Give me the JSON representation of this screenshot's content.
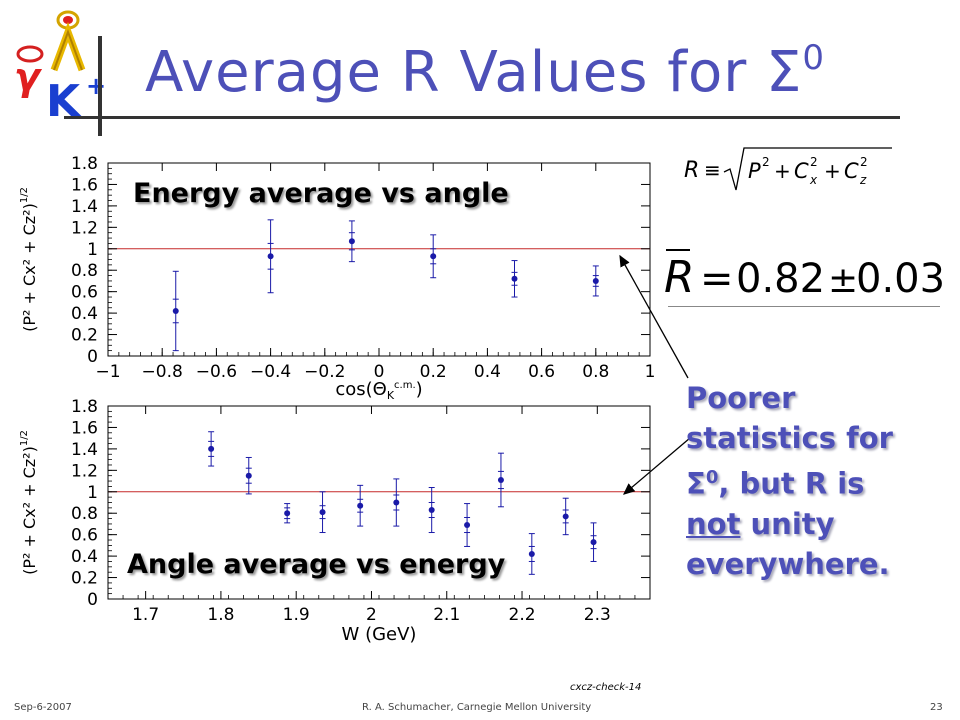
{
  "slide": {
    "title": "Average R  Values for Σ",
    "title_sup": "0",
    "logo_letters": "γ Λ K+",
    "formula_def": "R ≡ √(P² + Cx² + Cz²)",
    "formula_mean": "R̄ = 0.82 ± 0.03",
    "note": {
      "line1": "Poorer",
      "line2": "statistics for",
      "sigma": "Σ",
      "sigma_sup": "0",
      "line3_rest": ", but R is",
      "not": "not",
      "line4_rest": " unity",
      "line5": "everywhere."
    },
    "footer": {
      "date": "Sep-6-2007",
      "author": "R. A. Schumacher, Carnegie Mellon University",
      "page": "23"
    },
    "check_label": "cxcz-check-14"
  },
  "chart_data": [
    {
      "type": "scatter",
      "overlay_label": "Energy average vs angle",
      "xlabel": "cos(Θ",
      "xlabel_sub": "K",
      "xlabel_sup": "c.m.",
      "xlabel_close": ")",
      "ylabel": "(P² + Cx² + Cz²)",
      "ylabel_sup": "1/2",
      "xlim": [
        -1,
        1
      ],
      "ylim": [
        0,
        1.8
      ],
      "xticks": [
        -1,
        -0.8,
        -0.6,
        -0.4,
        -0.2,
        0,
        0.2,
        0.4,
        0.6,
        0.8,
        1
      ],
      "xtick_labels": [
        "−1",
        "−0.8",
        "−0.6",
        "−0.4",
        "−0.2",
        "0",
        "0.2",
        "0.4",
        "0.6",
        "0.8",
        "1"
      ],
      "yticks": [
        0,
        0.2,
        0.4,
        0.6,
        0.8,
        1,
        1.2,
        1.4,
        1.6,
        1.8
      ],
      "ytick_labels": [
        "0",
        "0.2",
        "0.4",
        "0.6",
        "0.8",
        "1",
        "1.2",
        "1.4",
        "1.6",
        "1.8"
      ],
      "reference_line": 1,
      "points": [
        {
          "x": -0.75,
          "y": 0.42,
          "err": 0.37,
          "err_inner": 0.11
        },
        {
          "x": -0.4,
          "y": 0.93,
          "err": 0.34,
          "err_inner": 0.12
        },
        {
          "x": -0.1,
          "y": 1.07,
          "err": 0.19,
          "err_inner": 0.08
        },
        {
          "x": 0.2,
          "y": 0.93,
          "err": 0.2,
          "err_inner": 0.07
        },
        {
          "x": 0.5,
          "y": 0.72,
          "err": 0.17,
          "err_inner": 0.06
        },
        {
          "x": 0.8,
          "y": 0.7,
          "err": 0.14,
          "err_inner": 0.05
        }
      ]
    },
    {
      "type": "scatter",
      "overlay_label": "Angle average vs energy",
      "xlabel": "W (GeV)",
      "ylabel": "(P² + Cx² + Cz²)",
      "ylabel_sup": "1/2",
      "xlim": [
        1.65,
        2.37
      ],
      "ylim": [
        0,
        1.8
      ],
      "xticks": [
        1.7,
        1.8,
        1.9,
        2.0,
        2.1,
        2.2,
        2.3
      ],
      "xtick_labels": [
        "1.7",
        "1.8",
        "1.9",
        "2",
        "2.1",
        "2.2",
        "2.3"
      ],
      "yticks": [
        0,
        0.2,
        0.4,
        0.6,
        0.8,
        1,
        1.2,
        1.4,
        1.6,
        1.8
      ],
      "ytick_labels": [
        "0",
        "0.2",
        "0.4",
        "0.6",
        "0.8",
        "1",
        "1.2",
        "1.4",
        "1.6",
        "1.8"
      ],
      "reference_line": 1,
      "points": [
        {
          "x": 1.787,
          "y": 1.4,
          "err": 0.16,
          "err_inner": 0.07
        },
        {
          "x": 1.837,
          "y": 1.15,
          "err": 0.17,
          "err_inner": 0.07
        },
        {
          "x": 1.888,
          "y": 0.8,
          "err": 0.09,
          "err_inner": 0.05
        },
        {
          "x": 1.935,
          "y": 0.81,
          "err": 0.19,
          "err_inner": 0.06
        },
        {
          "x": 1.985,
          "y": 0.87,
          "err": 0.19,
          "err_inner": 0.06
        },
        {
          "x": 2.033,
          "y": 0.9,
          "err": 0.22,
          "err_inner": 0.07
        },
        {
          "x": 2.08,
          "y": 0.83,
          "err": 0.21,
          "err_inner": 0.07
        },
        {
          "x": 2.127,
          "y": 0.69,
          "err": 0.2,
          "err_inner": 0.07
        },
        {
          "x": 2.172,
          "y": 1.11,
          "err": 0.25,
          "err_inner": 0.08
        },
        {
          "x": 2.213,
          "y": 0.42,
          "err": 0.19,
          "err_inner": 0.07
        },
        {
          "x": 2.258,
          "y": 0.77,
          "err": 0.17,
          "err_inner": 0.06
        },
        {
          "x": 2.295,
          "y": 0.53,
          "err": 0.18,
          "err_inner": 0.06
        }
      ]
    }
  ]
}
